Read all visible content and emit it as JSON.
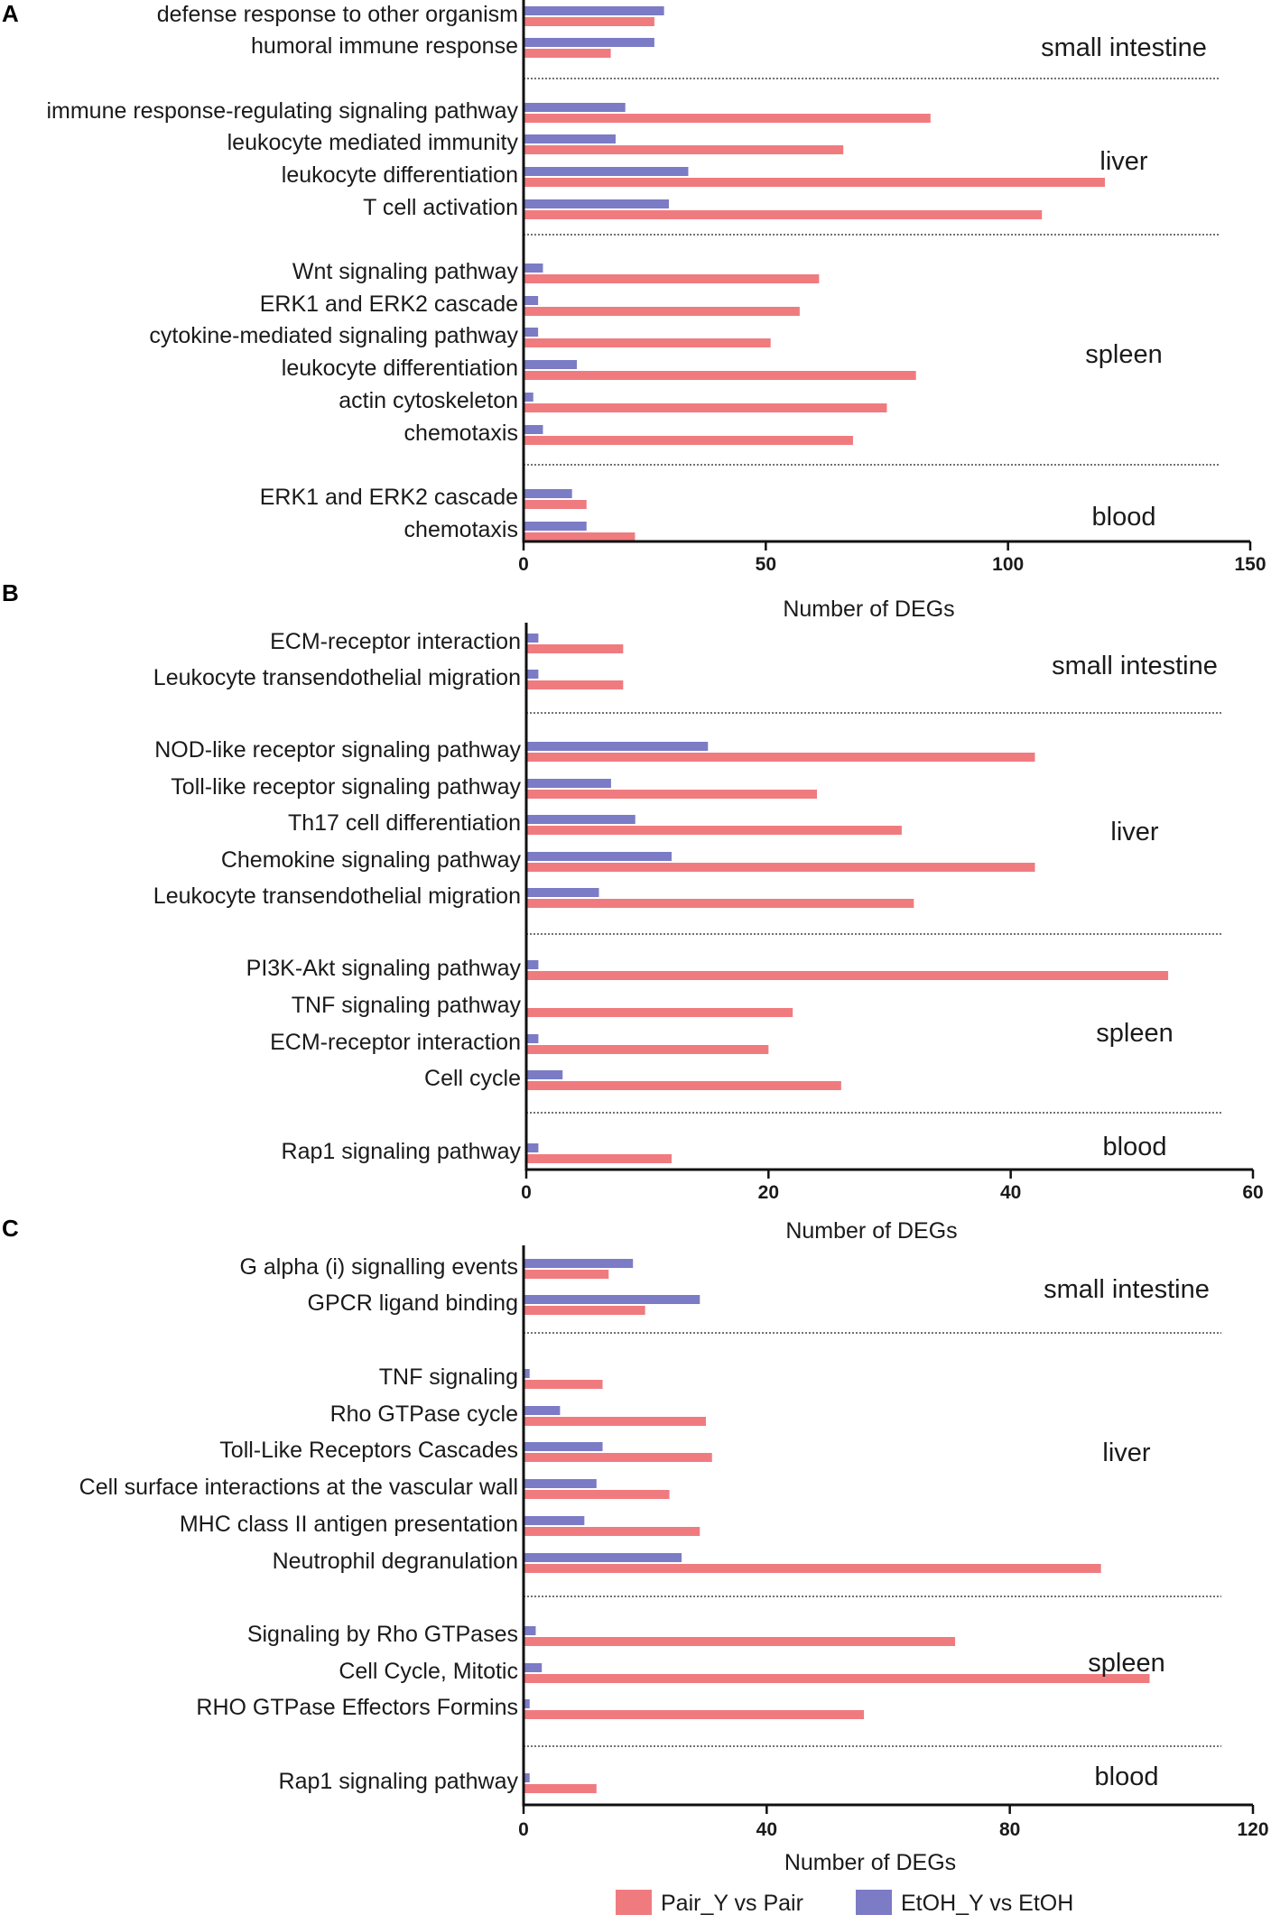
{
  "chart_data": [
    {
      "type": "bar",
      "panel": "A",
      "xlabel": "Number of DEGs",
      "xlim": [
        0,
        150
      ],
      "xticks": [
        0,
        50,
        100,
        150
      ],
      "series_names": [
        "EtOH_Y vs EtOH",
        "Pair_Y vs Pair"
      ],
      "groups": [
        {
          "name": "small intestine",
          "items": [
            {
              "label": "defense response to other organism",
              "etoh": 29,
              "pair": 27
            },
            {
              "label": "humoral immune response",
              "etoh": 27,
              "pair": 18
            }
          ]
        },
        {
          "name": "liver",
          "items": [
            {
              "label": "immune response-regulating signaling pathway",
              "etoh": 21,
              "pair": 84
            },
            {
              "label": "leukocyte mediated immunity",
              "etoh": 19,
              "pair": 66
            },
            {
              "label": "leukocyte differentiation",
              "etoh": 34,
              "pair": 120
            },
            {
              "label": "T cell activation",
              "etoh": 30,
              "pair": 107
            }
          ]
        },
        {
          "name": "spleen",
          "items": [
            {
              "label": "Wnt signaling pathway",
              "etoh": 4,
              "pair": 61
            },
            {
              "label": "ERK1 and ERK2 cascade",
              "etoh": 3,
              "pair": 57
            },
            {
              "label": "cytokine-mediated signaling pathway",
              "etoh": 3,
              "pair": 51
            },
            {
              "label": "leukocyte differentiation",
              "etoh": 11,
              "pair": 81
            },
            {
              "label": "actin cytoskeleton",
              "etoh": 2,
              "pair": 75
            },
            {
              "label": "chemotaxis",
              "etoh": 4,
              "pair": 68
            }
          ]
        },
        {
          "name": "blood",
          "items": [
            {
              "label": "ERK1 and ERK2 cascade",
              "etoh": 10,
              "pair": 13
            },
            {
              "label": "chemotaxis",
              "etoh": 13,
              "pair": 23
            }
          ]
        }
      ]
    },
    {
      "type": "bar",
      "panel": "B",
      "xlabel": "Number of DEGs",
      "xlim": [
        0,
        60
      ],
      "xticks": [
        0,
        20,
        40,
        60
      ],
      "series_names": [
        "EtOH_Y vs EtOH",
        "Pair_Y vs Pair"
      ],
      "groups": [
        {
          "name": "small intestine",
          "items": [
            {
              "label": "ECM-receptor interaction",
              "etoh": 1,
              "pair": 8
            },
            {
              "label": "Leukocyte transendothelial migration",
              "etoh": 1,
              "pair": 8
            }
          ]
        },
        {
          "name": "liver",
          "items": [
            {
              "label": "NOD-like receptor signaling pathway",
              "etoh": 15,
              "pair": 42
            },
            {
              "label": "Toll-like receptor signaling pathway",
              "etoh": 7,
              "pair": 24
            },
            {
              "label": "Th17 cell differentiation",
              "etoh": 9,
              "pair": 31
            },
            {
              "label": "Chemokine signaling pathway",
              "etoh": 12,
              "pair": 42
            },
            {
              "label": "Leukocyte transendothelial migration",
              "etoh": 6,
              "pair": 32
            }
          ]
        },
        {
          "name": "spleen",
          "items": [
            {
              "label": "PI3K-Akt signaling pathway",
              "etoh": 1,
              "pair": 53
            },
            {
              "label": "TNF signaling pathway",
              "etoh": 0,
              "pair": 22
            },
            {
              "label": "ECM-receptor interaction",
              "etoh": 1,
              "pair": 20
            },
            {
              "label": "Cell cycle",
              "etoh": 3,
              "pair": 26
            }
          ]
        },
        {
          "name": "blood",
          "items": [
            {
              "label": "Rap1 signaling pathway",
              "etoh": 1,
              "pair": 12
            }
          ]
        }
      ]
    },
    {
      "type": "bar",
      "panel": "C",
      "xlabel": "Number of DEGs",
      "xlim": [
        0,
        120
      ],
      "xticks": [
        0,
        40,
        80,
        120
      ],
      "series_names": [
        "EtOH_Y vs EtOH",
        "Pair_Y vs Pair"
      ],
      "groups": [
        {
          "name": "small intestine",
          "items": [
            {
              "label": "G alpha (i) signalling events",
              "etoh": 18,
              "pair": 14
            },
            {
              "label": "GPCR ligand binding",
              "etoh": 29,
              "pair": 20
            }
          ]
        },
        {
          "name": "liver",
          "items": [
            {
              "label": "TNF signaling",
              "etoh": 1,
              "pair": 13
            },
            {
              "label": "Rho GTPase cycle",
              "etoh": 6,
              "pair": 30
            },
            {
              "label": "Toll-Like Receptors Cascades",
              "etoh": 13,
              "pair": 31
            },
            {
              "label": "Cell surface interactions at the vascular wall",
              "etoh": 12,
              "pair": 24
            },
            {
              "label": "MHC class II antigen presentation",
              "etoh": 10,
              "pair": 29
            },
            {
              "label": "Neutrophil degranulation",
              "etoh": 26,
              "pair": 95
            }
          ]
        },
        {
          "name": "spleen",
          "items": [
            {
              "label": "Signaling by Rho GTPases",
              "etoh": 2,
              "pair": 71
            },
            {
              "label": "Cell Cycle, Mitotic",
              "etoh": 3,
              "pair": 103
            },
            {
              "label": "RHO GTPase Effectors Formins",
              "etoh": 1,
              "pair": 56
            }
          ]
        },
        {
          "name": "blood",
          "items": [
            {
              "label": "Rap1 signaling pathway",
              "etoh": 1,
              "pair": 12
            }
          ]
        }
      ]
    }
  ],
  "legend": {
    "pair_label": "Pair_Y vs Pair",
    "etoh_label": "EtOH_Y vs EtOH"
  },
  "colors": {
    "pair": "#f07b7f",
    "etoh": "#7b7bc6"
  }
}
